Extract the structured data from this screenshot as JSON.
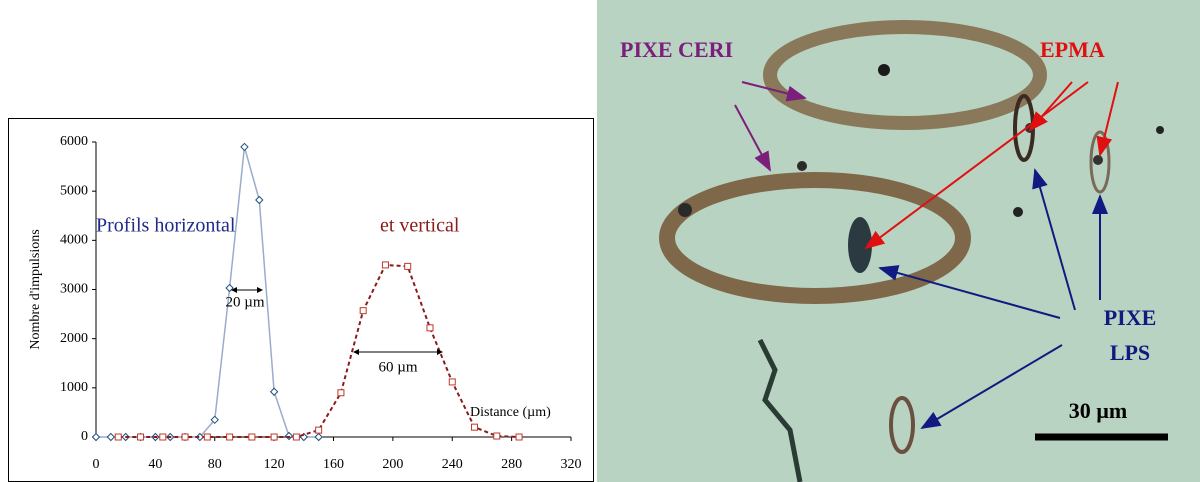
{
  "chart_data": {
    "type": "line",
    "ylabel": "Nombre d'impulsions",
    "xlim": [
      0,
      320
    ],
    "xticks": [
      0,
      40,
      80,
      120,
      160,
      200,
      240,
      280,
      320
    ],
    "ylim": [
      0,
      6000
    ],
    "yticks": [
      0,
      1000,
      2000,
      3000,
      4000,
      5000,
      6000
    ],
    "grid": false,
    "annotations": [
      {
        "text": "Profils horizontal",
        "color": "#1f2a8a"
      },
      {
        "text": "et vertical",
        "color": "#8b1a1a"
      },
      {
        "text": "20 µm",
        "color": "#000000"
      },
      {
        "text": "60 µm",
        "color": "#000000"
      },
      {
        "text": "Distance (µm)",
        "color": "#000000"
      }
    ],
    "series": [
      {
        "color": "#9aaccc",
        "marker_color": "#1f4e79",
        "marker": "diamond",
        "dashed": false,
        "x": [
          0,
          10,
          20,
          30,
          40,
          50,
          60,
          70,
          80,
          90,
          100,
          110,
          120,
          130,
          140,
          150
        ],
        "values": [
          0,
          0,
          0,
          0,
          0,
          0,
          0,
          0,
          350,
          3030,
          5900,
          4820,
          920,
          20,
          0,
          0
        ]
      },
      {
        "color": "#8b1a1a",
        "marker_color": "#c0392b",
        "marker": "square",
        "dashed": true,
        "x": [
          15,
          30,
          45,
          60,
          75,
          90,
          105,
          120,
          135,
          150,
          165,
          180,
          195,
          210,
          225,
          240,
          255,
          270,
          285
        ],
        "values": [
          0,
          0,
          0,
          0,
          0,
          0,
          0,
          0,
          0,
          140,
          900,
          2570,
          3500,
          3470,
          2220,
          1120,
          200,
          20,
          0
        ]
      }
    ]
  },
  "photo": {
    "labels": [
      "PIXE CERI",
      "EPMA",
      "PIXE",
      "LPS",
      "30 µm"
    ]
  }
}
